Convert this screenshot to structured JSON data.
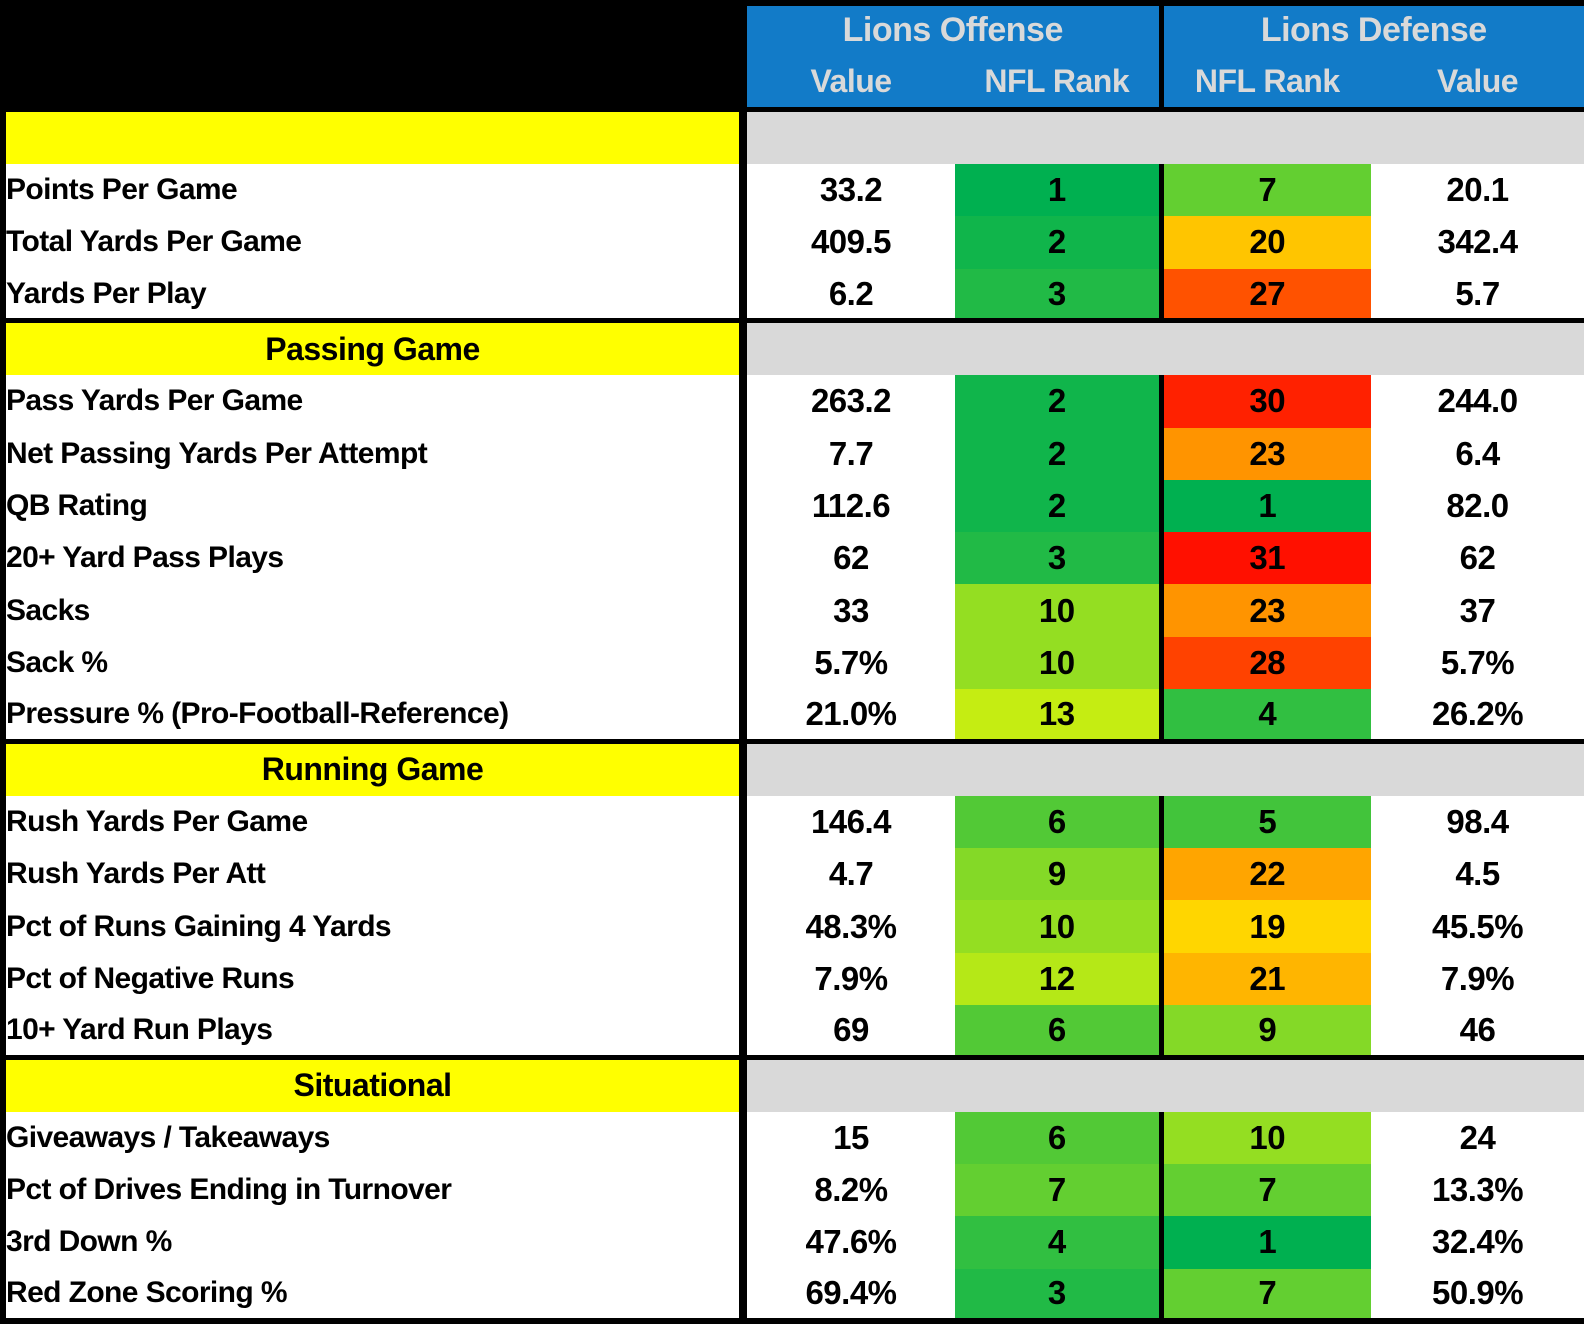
{
  "colors": {
    "header_bg": "#127BC8",
    "header_text": "#D9D9D9",
    "section_bg": "#FFFF00",
    "section_spacer_bg": "#D9D9D9",
    "corner_bg": "#000000",
    "border": "#000000",
    "rank_scale_min_green": "#00B050",
    "rank_scale_mid_yellow": "#FFFF00",
    "rank_scale_max_red": "#FF0000"
  },
  "chart_data": {
    "type": "table",
    "group_headers": [
      "Lions Offense",
      "Lions Defense"
    ],
    "sub_headers": [
      "Value",
      "NFL Rank",
      "NFL Rank",
      "Value"
    ],
    "sections": [
      {
        "title": "",
        "rows": [
          {
            "label": "Points Per Game",
            "offense_value": "33.2",
            "offense_rank": "1",
            "offense_rank_color": "#00B050",
            "defense_rank": "7",
            "defense_rank_color": "#63CF31",
            "defense_value": "20.1"
          },
          {
            "label": "Total Yards Per Game",
            "offense_value": "409.5",
            "offense_rank": "2",
            "offense_rank_color": "#10B54B",
            "defense_rank": "20",
            "defense_rank_color": "#FFC500",
            "defense_value": "342.4"
          },
          {
            "label": "Yards Per Play",
            "offense_value": "6.2",
            "offense_rank": "3",
            "offense_rank_color": "#21BA46",
            "defense_rank": "27",
            "defense_rank_color": "#FF5200",
            "defense_value": "5.7"
          }
        ]
      },
      {
        "title": "Passing Game",
        "rows": [
          {
            "label": "Pass Yards Per Game",
            "offense_value": "263.2",
            "offense_rank": "2",
            "offense_rank_color": "#10B54B",
            "defense_rank": "30",
            "defense_rank_color": "#FF2100",
            "defense_value": "244.0"
          },
          {
            "label": "Net Passing Yards Per Attempt",
            "offense_value": "7.7",
            "offense_rank": "2",
            "offense_rank_color": "#10B54B",
            "defense_rank": "23",
            "defense_rank_color": "#FF9400",
            "defense_value": "6.4"
          },
          {
            "label": "QB Rating",
            "offense_value": "112.6",
            "offense_rank": "2",
            "offense_rank_color": "#10B54B",
            "defense_rank": "1",
            "defense_rank_color": "#00B050",
            "defense_value": "82.0"
          },
          {
            "label": "20+ Yard Pass Plays",
            "offense_value": "62",
            "offense_rank": "3",
            "offense_rank_color": "#21BA46",
            "defense_rank": "31",
            "defense_rank_color": "#FF1000",
            "defense_value": "62"
          },
          {
            "label": "Sacks",
            "offense_value": "33",
            "offense_rank": "10",
            "offense_rank_color": "#94DE22",
            "defense_rank": "23",
            "defense_rank_color": "#FF9400",
            "defense_value": "37"
          },
          {
            "label": "Sack %",
            "offense_value": "5.7%",
            "offense_rank": "10",
            "offense_rank_color": "#94DE22",
            "defense_rank": "28",
            "defense_rank_color": "#FF4200",
            "defense_value": "5.7%"
          },
          {
            "label": "Pressure % (Pro-Football-Reference)",
            "offense_value": "21.0%",
            "offense_rank": "13",
            "offense_rank_color": "#C5ED12",
            "defense_rank": "4",
            "defense_rank_color": "#31BF41",
            "defense_value": "26.2%"
          }
        ]
      },
      {
        "title": "Running Game",
        "rows": [
          {
            "label": "Rush Yards Per Game",
            "offense_value": "146.4",
            "offense_rank": "6",
            "offense_rank_color": "#52C936",
            "defense_rank": "5",
            "defense_rank_color": "#42C43B",
            "defense_value": "98.4"
          },
          {
            "label": "Rush Yards Per Att",
            "offense_value": "4.7",
            "offense_rank": "9",
            "offense_rank_color": "#84D927",
            "defense_rank": "22",
            "defense_rank_color": "#FFA500",
            "defense_value": "4.5"
          },
          {
            "label": "Pct of Runs Gaining 4 Yards",
            "offense_value": "48.3%",
            "offense_rank": "10",
            "offense_rank_color": "#94DE22",
            "defense_rank": "19",
            "defense_rank_color": "#FFD600",
            "defense_value": "45.5%"
          },
          {
            "label": "Pct of Negative Runs",
            "offense_value": "7.9%",
            "offense_rank": "12",
            "offense_rank_color": "#B5E817",
            "defense_rank": "21",
            "defense_rank_color": "#FFB500",
            "defense_value": "7.9%"
          },
          {
            "label": "10+ Yard Run Plays",
            "offense_value": "69",
            "offense_rank": "6",
            "offense_rank_color": "#52C936",
            "defense_rank": "9",
            "defense_rank_color": "#84D927",
            "defense_value": "46"
          }
        ]
      },
      {
        "title": "Situational",
        "rows": [
          {
            "label": "Giveaways / Takeaways",
            "offense_value": "15",
            "offense_rank": "6",
            "offense_rank_color": "#52C936",
            "defense_rank": "10",
            "defense_rank_color": "#94DE22",
            "defense_value": "24"
          },
          {
            "label": "Pct of Drives Ending in Turnover",
            "offense_value": "8.2%",
            "offense_rank": "7",
            "offense_rank_color": "#63CF31",
            "defense_rank": "7",
            "defense_rank_color": "#63CF31",
            "defense_value": "13.3%"
          },
          {
            "label": "3rd Down %",
            "offense_value": "47.6%",
            "offense_rank": "4",
            "offense_rank_color": "#31BF41",
            "defense_rank": "1",
            "defense_rank_color": "#00B050",
            "defense_value": "32.4%"
          },
          {
            "label": "Red Zone Scoring %",
            "offense_value": "69.4%",
            "offense_rank": "3",
            "offense_rank_color": "#21BA46",
            "defense_rank": "7",
            "defense_rank_color": "#63CF31",
            "defense_value": "50.9%"
          }
        ]
      }
    ]
  }
}
